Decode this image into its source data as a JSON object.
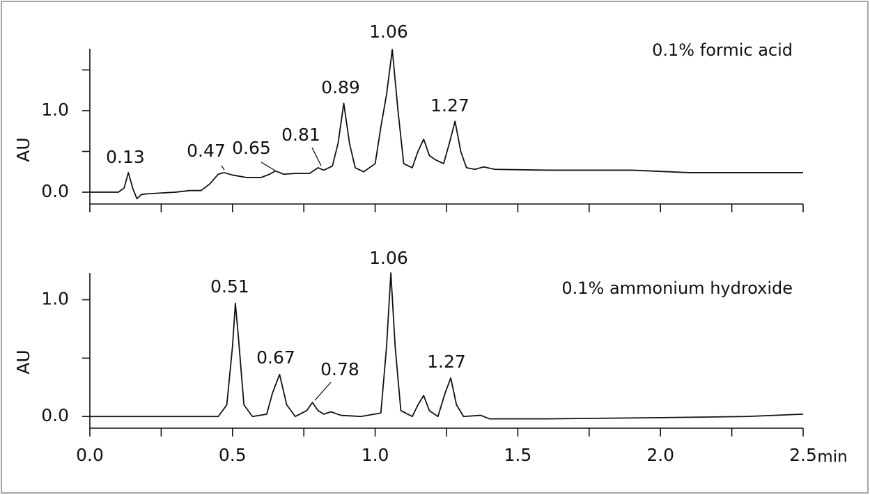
{
  "chart_data": [
    {
      "type": "line",
      "ylabel": "AU",
      "legend": "0.1% formic acid",
      "color": "#111111",
      "xlim": [
        0,
        2.5
      ],
      "ylim": [
        -0.145,
        1.76
      ],
      "xtick_marks": [
        0,
        0.25,
        0.5,
        0.75,
        1,
        1.25,
        1.5,
        1.75,
        2,
        2.25,
        2.5
      ],
      "ytick_marks": [
        0,
        0.5,
        1,
        1.5
      ],
      "yticks": [
        {
          "value": 0,
          "label": "0.0"
        },
        {
          "value": 1,
          "label": "1.0"
        }
      ],
      "peak_labels": [
        0.13,
        0.47,
        0.65,
        0.81,
        0.89,
        1.06,
        1.27
      ],
      "x": [
        0,
        0.1,
        0.12,
        0.135,
        0.15,
        0.165,
        0.18,
        0.2,
        0.3,
        0.35,
        0.39,
        0.42,
        0.45,
        0.47,
        0.5,
        0.55,
        0.6,
        0.63,
        0.65,
        0.68,
        0.72,
        0.77,
        0.8,
        0.82,
        0.85,
        0.87,
        0.89,
        0.91,
        0.93,
        0.96,
        1.0,
        1.02,
        1.04,
        1.06,
        1.08,
        1.1,
        1.13,
        1.15,
        1.17,
        1.19,
        1.21,
        1.24,
        1.26,
        1.28,
        1.3,
        1.32,
        1.35,
        1.38,
        1.42,
        1.6,
        1.9,
        2.1,
        2.3,
        2.5
      ],
      "values": [
        0,
        0,
        0.05,
        0.24,
        0.05,
        -0.08,
        -0.03,
        -0.02,
        0,
        0.02,
        0.02,
        0.1,
        0.22,
        0.24,
        0.21,
        0.18,
        0.18,
        0.22,
        0.26,
        0.22,
        0.23,
        0.23,
        0.3,
        0.27,
        0.32,
        0.6,
        1.09,
        0.6,
        0.3,
        0.25,
        0.35,
        0.8,
        1.2,
        1.75,
        1.0,
        0.35,
        0.3,
        0.5,
        0.65,
        0.45,
        0.4,
        0.35,
        0.6,
        0.87,
        0.5,
        0.3,
        0.28,
        0.31,
        0.28,
        0.27,
        0.27,
        0.24,
        0.24,
        0.24
      ]
    },
    {
      "type": "line",
      "ylabel": "AU",
      "xlabel": "min",
      "legend": "0.1% ammonium hydroxide",
      "color": "#111111",
      "xlim": [
        0,
        2.5
      ],
      "ylim": [
        -0.1,
        1.23
      ],
      "xtick_marks": [
        0,
        0.25,
        0.5,
        0.75,
        1,
        1.25,
        1.5,
        1.75,
        2,
        2.25,
        2.5
      ],
      "xticks": [
        {
          "value": 0,
          "label": "0.0"
        },
        0.5,
        {
          "value": 1,
          "label": "1.0"
        },
        1.5,
        {
          "value": 2,
          "label": "2.0"
        },
        2.5
      ],
      "ytick_marks": [
        0,
        0.5,
        1
      ],
      "yticks": [
        {
          "value": 0,
          "label": "0.0"
        },
        {
          "value": 1,
          "label": "1.0"
        }
      ],
      "peak_labels": [
        0.51,
        0.67,
        0.78,
        1.06,
        1.27
      ],
      "x": [
        0,
        0.3,
        0.45,
        0.48,
        0.5,
        0.51,
        0.52,
        0.54,
        0.57,
        0.62,
        0.64,
        0.665,
        0.69,
        0.72,
        0.76,
        0.78,
        0.8,
        0.82,
        0.845,
        0.88,
        0.95,
        1.02,
        1.04,
        1.055,
        1.07,
        1.09,
        1.13,
        1.15,
        1.17,
        1.19,
        1.22,
        1.245,
        1.265,
        1.285,
        1.31,
        1.37,
        1.4,
        1.6,
        2.0,
        2.3,
        2.5
      ],
      "values": [
        0,
        0,
        0,
        0.1,
        0.6,
        0.97,
        0.7,
        0.1,
        0,
        0.02,
        0.2,
        0.36,
        0.1,
        0,
        0.05,
        0.12,
        0.05,
        0.02,
        0.04,
        0.01,
        0,
        0.03,
        0.6,
        1.23,
        0.6,
        0.05,
        0,
        0.1,
        0.18,
        0.05,
        0,
        0.2,
        0.33,
        0.1,
        0,
        0.01,
        -0.02,
        -0.02,
        -0.01,
        0,
        0.02
      ]
    }
  ]
}
